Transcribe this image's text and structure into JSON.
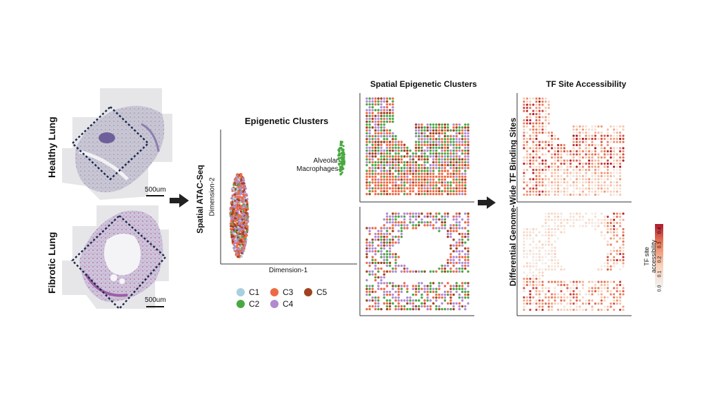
{
  "tissue": {
    "healthy_label": "Healthy Lung",
    "fibrotic_label": "Fibrotic Lung",
    "scale_healthy": "500um",
    "scale_fibrotic": "500um"
  },
  "method_label": "Spatial ATAC-Seq",
  "umap": {
    "title": "Epigenetic Clusters",
    "xlabel": "Dimension-1",
    "ylabel": "Dimension-2",
    "annotation": "Alveolar\nMacrophages"
  },
  "legend": {
    "items": [
      {
        "label": "C1",
        "color": "#a9cfe0"
      },
      {
        "label": "C3",
        "color": "#ee6a45"
      },
      {
        "label": "C5",
        "color": "#a0421f"
      },
      {
        "label": "C2",
        "color": "#4aa843"
      },
      {
        "label": "C4",
        "color": "#b08bd0"
      }
    ]
  },
  "spatial_title": "Spatial Epigenetic Clusters",
  "differential_label": "Differential Genome-Wide TF Binding Sites",
  "tf_title": "TF Site Accessibility",
  "colorbar": {
    "label": "TF site\naccessibility",
    "ticks": [
      "0.0",
      "0.1",
      "0.2",
      "0.3",
      "0.4"
    ],
    "color_low": "#f2f2f2",
    "color_high": "#b2182b"
  }
}
